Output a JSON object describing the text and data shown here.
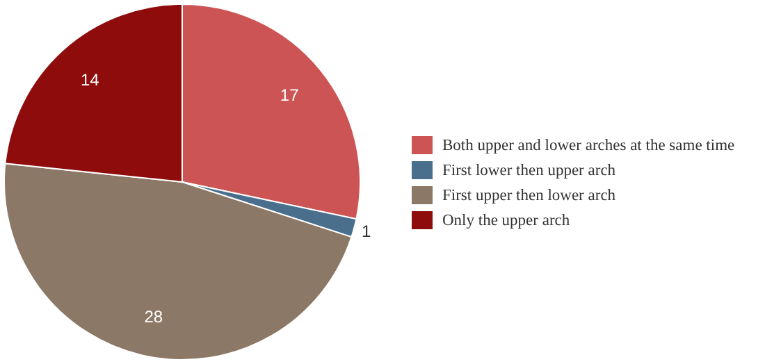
{
  "chart_data": {
    "type": "pie",
    "categories": [
      "Both upper and lower arches at the same time",
      "First lower then upper arch",
      "First upper then lower arch",
      "Only the upper arch"
    ],
    "values": [
      17,
      1,
      28,
      14
    ],
    "colors": [
      "#cd5454",
      "#4a6f8c",
      "#8c7866",
      "#8e0c0c"
    ],
    "data_labels": true,
    "legend": "right"
  }
}
